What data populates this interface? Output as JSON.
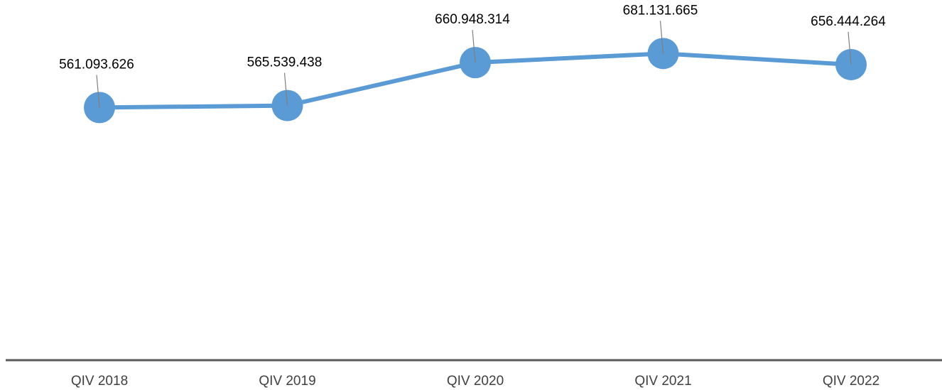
{
  "chart_data": {
    "type": "line",
    "categories": [
      "QIV 2018",
      "QIV 2019",
      "QIV 2020",
      "QIV 2021",
      "QIV 2022"
    ],
    "series": [
      {
        "color": "#5b9bd5",
        "values": [
          561093626,
          565539438,
          660948314,
          681131665,
          656444264
        ],
        "value_labels": [
          "561.093.626",
          "565.539.438",
          "660.948.314",
          "681.131.665",
          "656.444.264"
        ]
      }
    ],
    "ylim": [
      0,
      800000000
    ]
  }
}
